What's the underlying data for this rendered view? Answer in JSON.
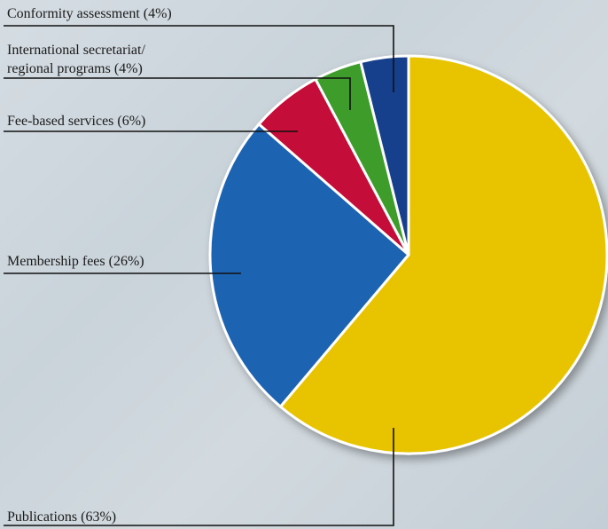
{
  "chart_data": {
    "type": "pie",
    "title": "",
    "slices": [
      {
        "label": "Publications (63%)",
        "value": 63,
        "color": "#e8c400"
      },
      {
        "label": "Membership fees (26%)",
        "value": 26,
        "color": "#1c63b2"
      },
      {
        "label": "Fee-based services (6%)",
        "value": 6,
        "color": "#c41038"
      },
      {
        "label": "International secretariat/ regional programs (4%)",
        "value": 4,
        "color": "#3d9c2a"
      },
      {
        "label": "Conformity assessment (4%)",
        "value": 4,
        "color": "#173f8c"
      }
    ]
  },
  "labels": {
    "conformity": "Conformity assessment (4%)",
    "intl_line1": "International secretariat/",
    "intl_line2": "regional programs (4%)",
    "fee": "Fee-based services (6%)",
    "membership": "Membership fees (26%)",
    "publications": "Publications (63%)"
  },
  "colors": {
    "leader_line": "#111111",
    "slice_border": "#ffffff"
  }
}
